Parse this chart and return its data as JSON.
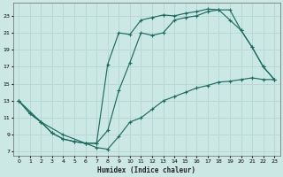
{
  "xlabel": "Humidex (Indice chaleur)",
  "xlim": [
    -0.5,
    23.5
  ],
  "ylim": [
    6.5,
    24.5
  ],
  "xticks": [
    0,
    1,
    2,
    3,
    4,
    5,
    6,
    7,
    8,
    9,
    10,
    11,
    12,
    13,
    14,
    15,
    16,
    17,
    18,
    19,
    20,
    21,
    22,
    23
  ],
  "yticks": [
    7,
    9,
    11,
    13,
    15,
    17,
    19,
    21,
    23
  ],
  "bg_color": "#cce8e4",
  "grid_color": "#b8d8d4",
  "line_color": "#1a6e60",
  "line1_x": [
    0,
    1,
    2,
    3,
    4,
    5,
    6,
    7,
    8,
    9,
    10,
    11,
    12,
    13,
    14,
    15,
    16,
    17,
    18,
    19,
    20,
    21,
    22,
    23
  ],
  "line1_y": [
    13.0,
    11.5,
    10.5,
    9.2,
    8.5,
    8.2,
    8.0,
    8.0,
    9.5,
    14.2,
    17.5,
    21.0,
    20.7,
    21.0,
    22.5,
    22.8,
    23.0,
    23.5,
    23.7,
    23.7,
    21.3,
    19.3,
    17.0,
    15.5
  ],
  "line2_x": [
    0,
    2,
    4,
    6,
    7,
    8,
    9,
    10,
    11,
    12,
    13,
    14,
    15,
    16,
    17,
    18,
    19,
    20,
    21,
    22,
    23
  ],
  "line2_y": [
    13.0,
    10.5,
    9.0,
    8.0,
    7.5,
    7.3,
    8.8,
    10.5,
    11.0,
    12.0,
    13.0,
    13.5,
    14.0,
    14.5,
    14.8,
    15.2,
    15.3,
    15.5,
    15.7,
    15.5,
    15.5
  ],
  "line3_x": [
    0,
    1,
    2,
    3,
    4,
    5,
    6,
    7,
    8,
    9,
    10,
    11,
    12,
    13,
    14,
    15,
    16,
    17,
    18,
    19,
    20,
    21,
    22,
    23
  ],
  "line3_y": [
    13.0,
    11.5,
    10.5,
    9.2,
    8.5,
    8.2,
    8.0,
    8.0,
    17.3,
    21.0,
    20.8,
    22.5,
    22.8,
    23.1,
    23.0,
    23.3,
    23.5,
    23.8,
    23.7,
    22.5,
    21.3,
    19.3,
    17.0,
    15.5
  ]
}
